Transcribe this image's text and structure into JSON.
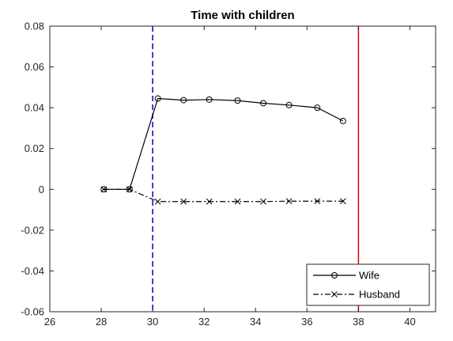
{
  "chart_data": {
    "type": "line",
    "title": "Time with children",
    "xlabel": "",
    "ylabel": "",
    "xlim": [
      26,
      41
    ],
    "ylim": [
      -0.06,
      0.08
    ],
    "xticks": [
      26,
      28,
      30,
      32,
      34,
      36,
      38,
      40
    ],
    "yticks": [
      -0.06,
      -0.04,
      -0.02,
      0,
      0.02,
      0.04,
      0.06,
      0.08
    ],
    "xtick_labels": [
      "26",
      "28",
      "30",
      "32",
      "34",
      "36",
      "38",
      "40"
    ],
    "ytick_labels": [
      "-0.06",
      "-0.04",
      "-0.02",
      "0",
      "0.02",
      "0.04",
      "0.06",
      "0.08"
    ],
    "grid": false,
    "legend_position": "bottom-right",
    "series": [
      {
        "name": "Wife",
        "marker": "circle",
        "line_style": "solid",
        "color": "#000000",
        "x": [
          28.1,
          29.1,
          30.2,
          31.2,
          32.2,
          33.3,
          34.3,
          35.3,
          36.4,
          37.4
        ],
        "y": [
          0.0,
          0.0,
          0.0445,
          0.0437,
          0.044,
          0.0435,
          0.0422,
          0.0413,
          0.04,
          0.0335
        ]
      },
      {
        "name": "Husband",
        "marker": "x",
        "line_style": "dash-dot",
        "color": "#000000",
        "x": [
          28.1,
          29.1,
          30.2,
          31.2,
          32.2,
          33.3,
          34.3,
          35.3,
          36.4,
          37.4
        ],
        "y": [
          0.0,
          0.0,
          -0.006,
          -0.006,
          -0.006,
          -0.006,
          -0.006,
          -0.0058,
          -0.0058,
          -0.0058
        ]
      }
    ],
    "reference_lines": [
      {
        "orientation": "vertical",
        "x": 30,
        "color": "#0000cc",
        "line_style": "dashed"
      },
      {
        "orientation": "vertical",
        "x": 38,
        "color": "#e00000",
        "line_style": "solid"
      }
    ]
  }
}
